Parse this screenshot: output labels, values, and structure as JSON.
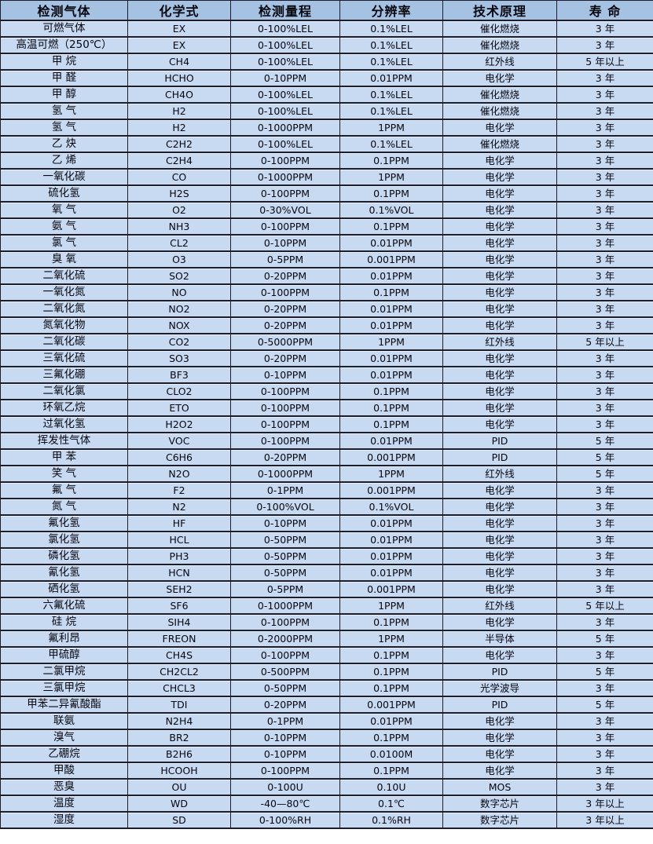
{
  "colors": {
    "header_bg": "#a5c2e2",
    "row_bg": "#c8daf2",
    "border": "#1d1d2b",
    "text": "#06060f"
  },
  "table": {
    "columns": [
      {
        "label": "检测气体"
      },
      {
        "label": "化学式"
      },
      {
        "label": "检测量程"
      },
      {
        "label": "分辨率"
      },
      {
        "label": "技术原理"
      },
      {
        "label": "寿  命"
      }
    ],
    "rows": [
      [
        "可燃气体",
        "EX",
        "0-100%LEL",
        "0.1%LEL",
        "催化燃烧",
        "3 年"
      ],
      [
        "高温可燃（250℃）",
        "EX",
        "0-100%LEL",
        "0.1%LEL",
        "催化燃烧",
        "3 年"
      ],
      [
        "甲  烷",
        "CH4",
        "0-100%LEL",
        "0.1%LEL",
        "红外线",
        "5 年以上"
      ],
      [
        "甲  醛",
        "HCHO",
        "0-10PPM",
        "0.01PPM",
        "电化学",
        "3 年"
      ],
      [
        "甲  醇",
        "CH4O",
        "0-100%LEL",
        "0.1%LEL",
        "催化燃烧",
        "3 年"
      ],
      [
        "氢  气",
        "H2",
        "0-100%LEL",
        "0.1%LEL",
        "催化燃烧",
        "3 年"
      ],
      [
        "氢  气",
        "H2",
        "0-1000PPM",
        "1PPM",
        "电化学",
        "3 年"
      ],
      [
        "乙  炔",
        "C2H2",
        "0-100%LEL",
        "0.1%LEL",
        "催化燃烧",
        "3 年"
      ],
      [
        "乙  烯",
        "C2H4",
        "0-100PPM",
        "0.1PPM",
        "电化学",
        "3 年"
      ],
      [
        "一氧化碳",
        "CO",
        "0-1000PPM",
        "1PPM",
        "电化学",
        "3 年"
      ],
      [
        "硫化氢",
        "H2S",
        "0-100PPM",
        "0.1PPM",
        "电化学",
        "3 年"
      ],
      [
        "氧  气",
        "O2",
        "0-30%VOL",
        "0.1%VOL",
        "电化学",
        "3 年"
      ],
      [
        "氨  气",
        "NH3",
        "0-100PPM",
        "0.1PPM",
        "电化学",
        "3 年"
      ],
      [
        "氯  气",
        "CL2",
        "0-10PPM",
        "0.01PPM",
        "电化学",
        "3 年"
      ],
      [
        "臭  氧",
        "O3",
        "0-5PPM",
        "0.001PPM",
        "电化学",
        "3 年"
      ],
      [
        "二氧化硫",
        "SO2",
        "0-20PPM",
        "0.01PPM",
        "电化学",
        "3 年"
      ],
      [
        "一氧化氮",
        "NO",
        "0-100PPM",
        "0.1PPM",
        "电化学",
        "3 年"
      ],
      [
        "二氧化氮",
        "NO2",
        "0-20PPM",
        "0.01PPM",
        "电化学",
        "3 年"
      ],
      [
        "氮氧化物",
        "NOX",
        "0-20PPM",
        "0.01PPM",
        "电化学",
        "3 年"
      ],
      [
        "二氧化碳",
        "CO2",
        "0-5000PPM",
        "1PPM",
        "红外线",
        "5 年以上"
      ],
      [
        "三氧化硫",
        "SO3",
        "0-20PPM",
        "0.01PPM",
        "电化学",
        "3 年"
      ],
      [
        "三氟化硼",
        "BF3",
        "0-10PPM",
        "0.01PPM",
        "电化学",
        "3 年"
      ],
      [
        "二氧化氯",
        "CLO2",
        "0-100PPM",
        "0.1PPM",
        "电化学",
        "3 年"
      ],
      [
        "环氧乙烷",
        "ETO",
        "0-100PPM",
        "0.1PPM",
        "电化学",
        "3 年"
      ],
      [
        "过氧化氢",
        "H2O2",
        "0-100PPM",
        "0.1PPM",
        "电化学",
        "3 年"
      ],
      [
        "挥发性气体",
        "VOC",
        "0-100PPM",
        "0.01PPM",
        "PID",
        "5 年"
      ],
      [
        "甲  苯",
        "C6H6",
        "0-20PPM",
        "0.001PPM",
        "PID",
        "5 年"
      ],
      [
        "笑 气",
        "N2O",
        "0-1000PPM",
        "1PPM",
        "红外线",
        "5 年"
      ],
      [
        "氟  气",
        "F2",
        "0-1PPM",
        "0.001PPM",
        "电化学",
        "3 年"
      ],
      [
        "氮  气",
        "N2",
        "0-100%VOL",
        "0.1%VOL",
        "电化学",
        "3 年"
      ],
      [
        "氟化氢",
        "HF",
        "0-10PPM",
        "0.01PPM",
        "电化学",
        "3 年"
      ],
      [
        "氯化氢",
        "HCL",
        "0-50PPM",
        "0.01PPM",
        "电化学",
        "3 年"
      ],
      [
        "磷化氢",
        "PH3",
        "0-50PPM",
        "0.01PPM",
        "电化学",
        "3 年"
      ],
      [
        "氰化氢",
        "HCN",
        "0-50PPM",
        "0.01PPM",
        "电化学",
        "3 年"
      ],
      [
        "硒化氢",
        "SEH2",
        "0-5PPM",
        "0.001PPM",
        "电化学",
        "3 年"
      ],
      [
        "六氟化硫",
        "SF6",
        "0-1000PPM",
        "1PPM",
        "红外线",
        "5 年以上"
      ],
      [
        "硅  烷",
        "SIH4",
        "0-100PPM",
        "0.1PPM",
        "电化学",
        "3 年"
      ],
      [
        "氟利昂",
        "FREON",
        "0-2000PPM",
        "1PPM",
        "半导体",
        "5 年"
      ],
      [
        "甲硫醇",
        "CH4S",
        "0-100PPM",
        "0.1PPM",
        "电化学",
        "3 年"
      ],
      [
        "二氯甲烷",
        "CH2CL2",
        "0-500PPM",
        "0.1PPM",
        "PID",
        "5 年"
      ],
      [
        "三氯甲烷",
        "CHCL3",
        "0-50PPM",
        "0.1PPM",
        "光学波导",
        "3 年"
      ],
      [
        "甲苯二异氰酸酯",
        "TDI",
        "0-20PPM",
        "0.001PPM",
        "PID",
        "5 年"
      ],
      [
        "联氨",
        "N2H4",
        "0-1PPM",
        "0.01PPM",
        "电化学",
        "3 年"
      ],
      [
        "溴气",
        "BR2",
        "0-10PPM",
        "0.1PPM",
        "电化学",
        "3 年"
      ],
      [
        "乙硼烷",
        "B2H6",
        "0-10PPM",
        "0.0100M",
        "电化学",
        "3 年"
      ],
      [
        "甲酸",
        "HCOOH",
        "0-100PPM",
        "0.1PPM",
        "电化学",
        "3 年"
      ],
      [
        "恶臭",
        "OU",
        "0-100U",
        "0.10U",
        "MOS",
        "3 年"
      ],
      [
        "温度",
        "WD",
        "-40—80℃",
        "0.1℃",
        "数字芯片",
        "3 年以上"
      ],
      [
        "湿度",
        "SD",
        "0-100%RH",
        "0.1%RH",
        "数字芯片",
        "3 年以上"
      ]
    ]
  }
}
